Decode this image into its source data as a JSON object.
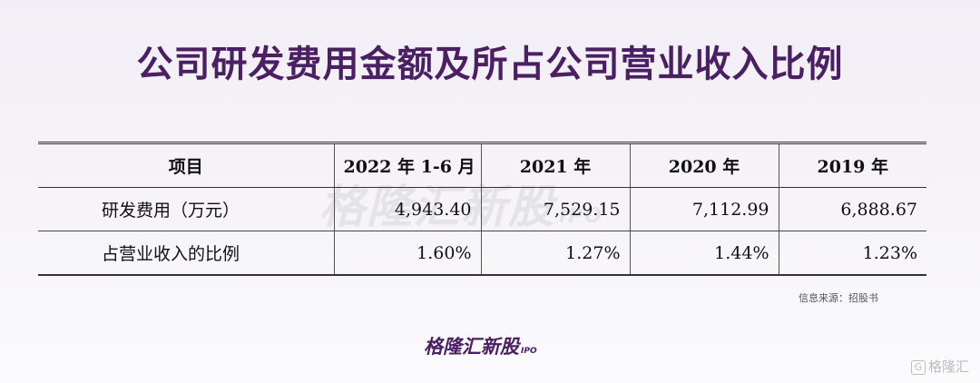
{
  "title": "公司研发费用金额及所占公司营业收入比例",
  "watermark": {
    "text": "格隆汇新股",
    "sub": "IPO"
  },
  "table": {
    "headers": [
      "项目",
      "2022 年 1-6 月",
      "2021 年",
      "2020 年",
      "2019 年"
    ],
    "rows": [
      {
        "label": "研发费用（万元）",
        "values": [
          "4,943.40",
          "7,529.15",
          "7,112.99",
          "6,888.67"
        ]
      },
      {
        "label": "占营业收入的比例",
        "values": [
          "1.60%",
          "1.27%",
          "1.44%",
          "1.23%"
        ]
      }
    ]
  },
  "source": "信息来源：招股书",
  "logo": {
    "text": "格隆汇新股",
    "sub": "IPO"
  },
  "corner_brand": {
    "glyph": "G",
    "text": "格隆汇"
  }
}
